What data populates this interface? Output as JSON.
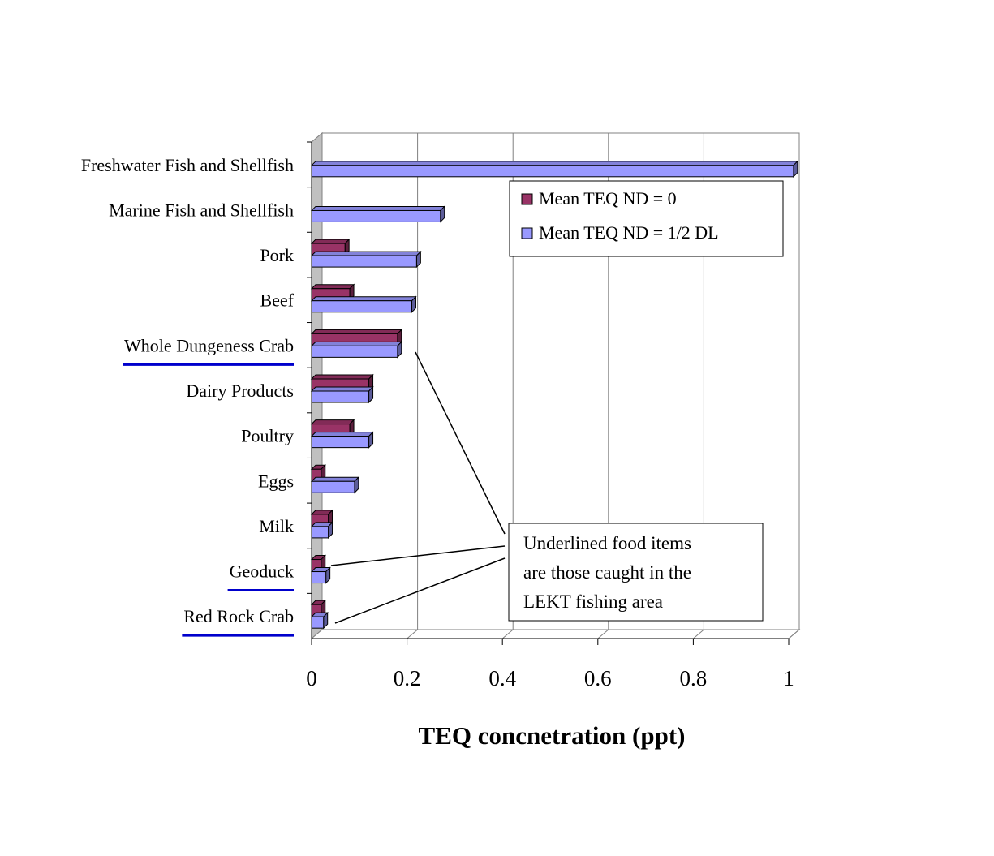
{
  "chart_data": {
    "type": "bar",
    "orientation": "horizontal",
    "categories": [
      "Freshwater Fish and Shellfish",
      "Marine Fish and Shellfish",
      "Pork",
      "Beef",
      "Whole Dungeness Crab",
      "Dairy Products",
      "Poultry",
      "Eggs",
      "Milk",
      "Geoduck",
      "Red Rock Crab"
    ],
    "underlined_categories": [
      "Whole Dungeness Crab",
      "Geoduck",
      "Red Rock Crab"
    ],
    "series": [
      {
        "name": "Mean TEQ ND = 0",
        "color": "#993366",
        "values": [
          null,
          null,
          0.07,
          0.08,
          0.18,
          0.12,
          0.08,
          0.02,
          0.035,
          0.02,
          0.02
        ]
      },
      {
        "name": "Mean TEQ ND = 1/2 DL",
        "color": "#9999ff",
        "values": [
          1.01,
          0.27,
          0.22,
          0.21,
          0.18,
          0.12,
          0.12,
          0.09,
          0.035,
          0.03,
          0.025
        ]
      }
    ],
    "xlabel": "TEQ concnetration (ppt)",
    "ylabel": "",
    "xlim": [
      0,
      1
    ],
    "xticks": [
      "0",
      "0.2",
      "0.4",
      "0.6",
      "0.8",
      "1"
    ],
    "grid": true,
    "legend_position": "top-right",
    "annotation": [
      "Underlined food items",
      "are those caught in the",
      "LEKT fishing area"
    ],
    "underline_color": "#0000cc"
  }
}
